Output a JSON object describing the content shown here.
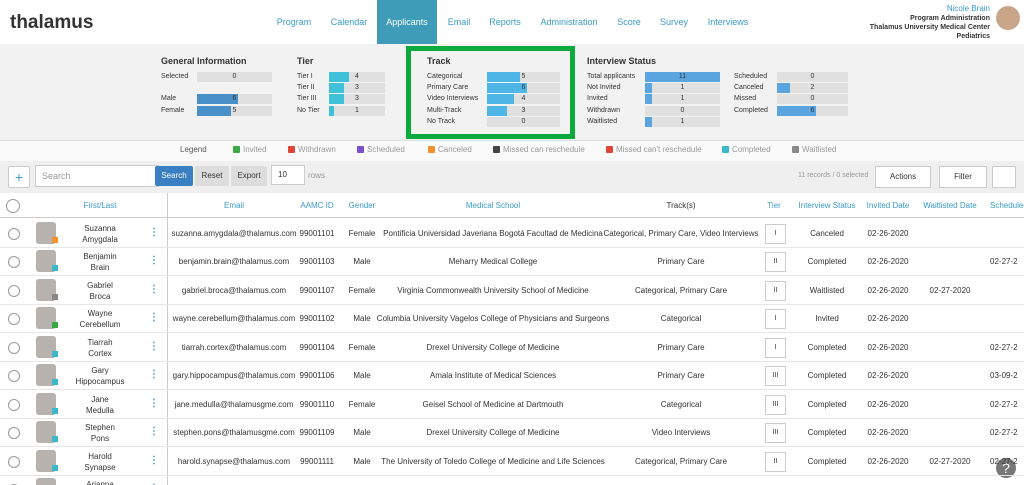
{
  "nav": {
    "logo": "thalamus",
    "items": [
      "Program",
      "Calendar",
      "Applicants",
      "Email",
      "Reports",
      "Administration",
      "Score",
      "Survey",
      "Interviews"
    ],
    "active_index": 2
  },
  "user": {
    "name": "Nicole Brain",
    "role": "Program Administration",
    "institution": "Thalamus University Medical Center",
    "department": "Pediatrics"
  },
  "stats": [
    {
      "title": "General Information",
      "color": "#4a90c8",
      "items": [
        {
          "label": "Selected",
          "value": 0
        },
        {
          "label": "Male",
          "value": 6
        },
        {
          "label": "Female",
          "value": 5
        }
      ]
    },
    {
      "title": "Tier",
      "color": "#3fc1d9",
      "items": [
        {
          "label": "Tier I",
          "value": 4
        },
        {
          "label": "Tier II",
          "value": 3
        },
        {
          "label": "Tier III",
          "value": 3
        },
        {
          "label": "No Tier",
          "value": 1
        }
      ]
    },
    {
      "title": "Track",
      "color": "#4db6e6",
      "items": [
        {
          "label": "Categorical",
          "value": 5
        },
        {
          "label": "Primary Care",
          "value": 6
        },
        {
          "label": "Video Interviews",
          "value": 4
        },
        {
          "label": "Multi-Track",
          "value": 3
        },
        {
          "label": "No Track",
          "value": 0
        }
      ]
    },
    {
      "title": "Interview Status",
      "color": "#5aa5e0",
      "items": [
        {
          "label": "Total applicants",
          "value": 11
        },
        {
          "label": "Not Invited",
          "value": 1
        },
        {
          "label": "Invited",
          "value": 1
        },
        {
          "label": "Withdrawn",
          "value": 0
        },
        {
          "label": "Waitlisted",
          "value": 1
        }
      ]
    },
    {
      "color": "#5aa5e0",
      "items": [
        {
          "label": "Scheduled",
          "value": 0
        },
        {
          "label": "Canceled",
          "value": 2
        },
        {
          "label": "Missed",
          "value": 0
        },
        {
          "label": "Completed",
          "value": 6
        }
      ]
    }
  ],
  "legend": {
    "title": "Legend",
    "items": [
      {
        "label": "Invited",
        "color": "#3aa845"
      },
      {
        "label": "Withdrawn",
        "color": "#e0453a"
      },
      {
        "label": "Scheduled",
        "color": "#7b4fc9"
      },
      {
        "label": "Canceled",
        "color": "#f0922e"
      },
      {
        "label": "Missed can reschedule",
        "color": "#444444"
      },
      {
        "label": "Missed can't reschedule",
        "color": "#e0453a"
      },
      {
        "label": "Completed",
        "color": "#3ab8c9"
      },
      {
        "label": "Waitlisted",
        "color": "#888888"
      }
    ]
  },
  "toolbar": {
    "search_placeholder": "Search",
    "search_button": "Search",
    "reset_button": "Reset",
    "export_button": "Export",
    "rows_value": 10,
    "rows_label": "rows",
    "records": "11 records / 0 selected",
    "actions_button": "Actions",
    "filter_button": "Filter"
  },
  "table": {
    "columns": [
      "First/Last",
      "Email",
      "AAMC ID",
      "Gender",
      "Medical School",
      "Track(s)",
      "Tier",
      "Interview Status",
      "Invited Date",
      "Waitlisted Date",
      "Scheduled"
    ],
    "rows": [
      {
        "first": "Suzanna",
        "last": "Amygdala",
        "email": "suzanna.amygdala@thalamus.com",
        "aamc_id": 99001101,
        "gender": "Female",
        "school": "Pontificia Universidad Javeriana Bogotá Facultad de Medicina",
        "tracks": "Categorical, Primary Care, Video Interviews",
        "tier": "I",
        "status": "Canceled",
        "invited": "02-26-2020",
        "waitlisted": null,
        "scheduled": null
      },
      {
        "first": "Benjamin",
        "last": "Brain",
        "email": "benjamin.brain@thalamus.com",
        "aamc_id": 99001103,
        "gender": "Male",
        "school": "Meharry Medical College",
        "tracks": "Primary Care",
        "tier": "II",
        "status": "Completed",
        "invited": "02-26-2020",
        "waitlisted": null,
        "scheduled": "02-27-2"
      },
      {
        "first": "Gabriel",
        "last": "Broca",
        "email": "gabriel.broca@thalamus.com",
        "aamc_id": 99001107,
        "gender": "Female",
        "school": "Virginia Commonwealth University School of Medicine",
        "tracks": "Categorical, Primary Care",
        "tier": "II",
        "status": "Waitlisted",
        "invited": "02-26-2020",
        "waitlisted": "02-27-2020",
        "scheduled": null
      },
      {
        "first": "Wayne",
        "last": "Cerebellum",
        "email": "wayne.cerebellum@thalamus.com",
        "aamc_id": 99001102,
        "gender": "Male",
        "school": "Columbia University Vagelos College of Physicians and Surgeons",
        "tracks": "Categorical",
        "tier": "I",
        "status": "Invited",
        "invited": "02-26-2020",
        "waitlisted": null,
        "scheduled": null
      },
      {
        "first": "Tiarrah",
        "last": "Cortex",
        "email": "tiarrah.cortex@thalamus.com",
        "aamc_id": 99001104,
        "gender": "Female",
        "school": "Drexel University College of Medicine",
        "tracks": "Primary Care",
        "tier": "I",
        "status": "Completed",
        "invited": "02-26-2020",
        "waitlisted": null,
        "scheduled": "02-27-2"
      },
      {
        "first": "Gary",
        "last": "Hippocampus",
        "email": "gary.hippocampus@thalamus.com",
        "aamc_id": 99001106,
        "gender": "Male",
        "school": "Amala Institute of Medical Sciences",
        "tracks": "Primary Care",
        "tier": "III",
        "status": "Completed",
        "invited": "02-26-2020",
        "waitlisted": null,
        "scheduled": "03-09-2"
      },
      {
        "first": "Jane",
        "last": "Medulla",
        "email": "jane.medulla@thalamusgme.com",
        "aamc_id": 99001110,
        "gender": "Female",
        "school": "Geisel School of Medicine at Dartmouth",
        "tracks": "Categorical",
        "tier": "III",
        "status": "Completed",
        "invited": "02-26-2020",
        "waitlisted": null,
        "scheduled": "02-27-2"
      },
      {
        "first": "Stephen",
        "last": "Pons",
        "email": "stephen.pons@thalamusgme.com",
        "aamc_id": 99001109,
        "gender": "Male",
        "school": "Drexel University College of Medicine",
        "tracks": "Video Interviews",
        "tier": "III",
        "status": "Completed",
        "invited": "02-26-2020",
        "waitlisted": null,
        "scheduled": "02-27-2"
      },
      {
        "first": "Harold",
        "last": "Synapse",
        "email": "harold.synapse@thalamus.com",
        "aamc_id": 99001111,
        "gender": "Male",
        "school": "The University of Toledo College of Medicine and Life Sciences",
        "tracks": "Categorical, Primary Care",
        "tier": "II",
        "status": "Completed",
        "invited": "02-26-2020",
        "waitlisted": "02-27-2020",
        "scheduled": "02-27-2"
      },
      {
        "first": "Arianna",
        "last": null,
        "email": null,
        "aamc_id": null,
        "gender": null,
        "school": null,
        "tracks": null,
        "tier": null,
        "status": null,
        "invited": null,
        "waitlisted": null,
        "scheduled": null
      }
    ]
  }
}
